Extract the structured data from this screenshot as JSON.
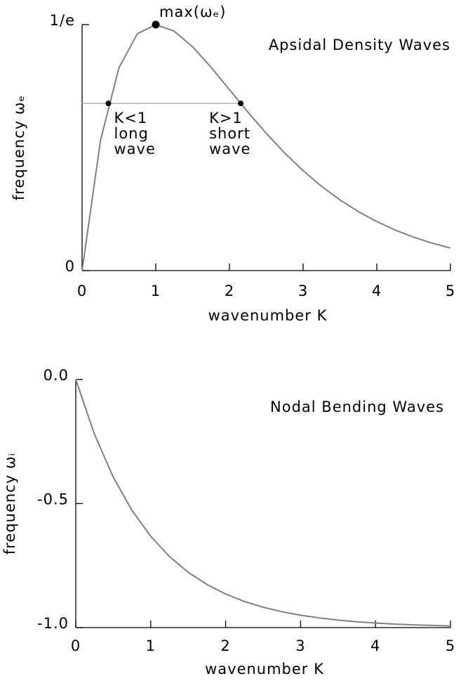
{
  "chart_data": [
    {
      "type": "line",
      "title": "Apsidal Density Waves",
      "xlabel": "wavenumber K",
      "ylabel": "frequency ωₑ",
      "x": [
        0,
        0.25,
        0.5,
        0.75,
        1,
        1.25,
        1.5,
        1.75,
        2,
        2.25,
        2.5,
        2.75,
        3,
        3.25,
        3.5,
        3.75,
        4,
        4.25,
        4.5,
        4.75,
        5
      ],
      "values": [
        0,
        0.1947,
        0.3033,
        0.3543,
        0.3679,
        0.3581,
        0.3347,
        0.3041,
        0.2707,
        0.2371,
        0.2052,
        0.1758,
        0.1494,
        0.126,
        0.1057,
        0.0882,
        0.0733,
        0.0606,
        0.05,
        0.0411,
        0.0337
      ],
      "color": "#808080",
      "xlim": [
        0,
        5
      ],
      "xticks": [
        0,
        1,
        2,
        3,
        4,
        5
      ],
      "ylim": [
        0,
        0.3679
      ],
      "yticks": [
        0,
        {
          "value": 0.3679,
          "label": "1/e"
        }
      ],
      "hline": {
        "y": 0.25,
        "x_end": 2.153
      },
      "points": [
        {
          "x": 1,
          "y": 0.3679,
          "label": "max(ωₑ)"
        },
        {
          "x": 0.357,
          "y": 0.25,
          "label": [
            "K<1",
            "long",
            "wave"
          ]
        },
        {
          "x": 2.153,
          "y": 0.25,
          "label": [
            "K>1",
            "short",
            "wave"
          ]
        }
      ]
    },
    {
      "type": "line",
      "title": "Nodal Bending Waves",
      "xlabel": "wavenumber K",
      "ylabel": "frequency ωᵢ",
      "x": [
        0,
        0.25,
        0.5,
        0.75,
        1,
        1.25,
        1.5,
        1.75,
        2,
        2.25,
        2.5,
        2.75,
        3,
        3.25,
        3.5,
        3.75,
        4,
        4.25,
        4.5,
        4.75,
        5
      ],
      "values": [
        0,
        -0.2212,
        -0.3935,
        -0.5276,
        -0.6321,
        -0.7135,
        -0.7769,
        -0.8262,
        -0.8647,
        -0.8946,
        -0.9179,
        -0.9361,
        -0.9502,
        -0.9612,
        -0.9698,
        -0.9765,
        -0.9817,
        -0.9857,
        -0.9889,
        -0.9913,
        -0.9933
      ],
      "color": "#808080",
      "xlim": [
        0,
        5
      ],
      "xticks": [
        0,
        1,
        2,
        3,
        4,
        5
      ],
      "ylim": [
        -1,
        0
      ],
      "yticks": [
        {
          "value": 0,
          "label": "0.0"
        },
        -0.5,
        {
          "value": -1,
          "label": "-1.0"
        }
      ]
    }
  ]
}
